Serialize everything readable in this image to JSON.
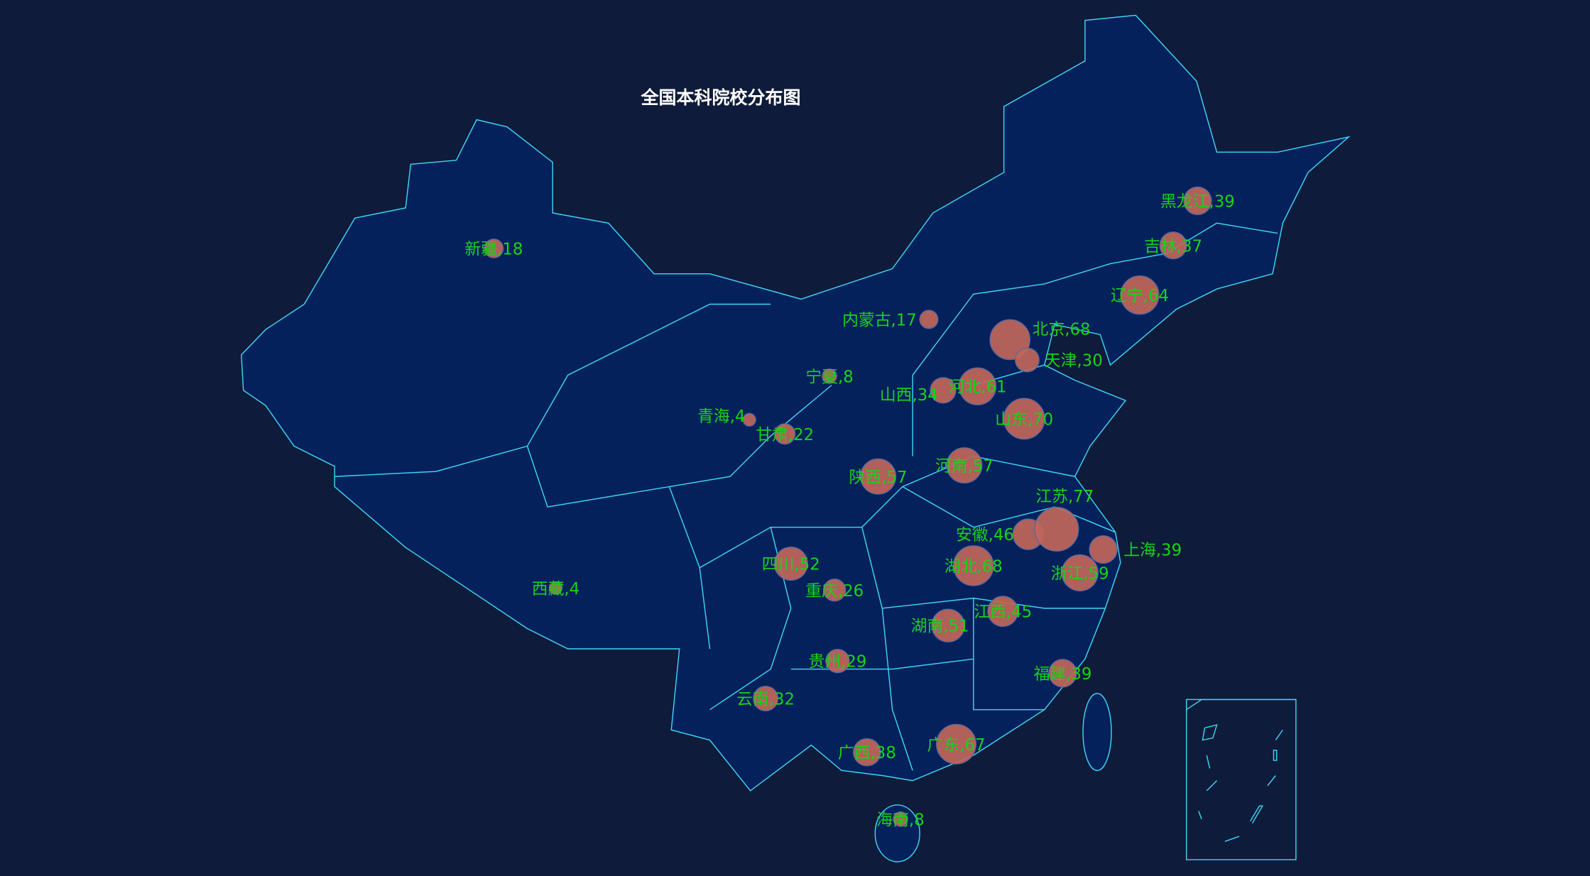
{
  "title": "全国本科院校分布图",
  "colors": {
    "background": "#0f1b3a",
    "map_fill": "#04215c",
    "border": "#3dd6f5",
    "bubble": "#c0665a",
    "label": "#19d219"
  },
  "chart_data": {
    "type": "scatter",
    "title": "全国本科院校分布图",
    "points": [
      {
        "name": "新疆",
        "value": 18
      },
      {
        "name": "西藏",
        "value": 4
      },
      {
        "name": "青海",
        "value": 4
      },
      {
        "name": "甘肃",
        "value": 22
      },
      {
        "name": "宁夏",
        "value": 8
      },
      {
        "name": "内蒙古",
        "value": 17
      },
      {
        "name": "陕西",
        "value": 57
      },
      {
        "name": "山西",
        "value": 34
      },
      {
        "name": "河北",
        "value": 61
      },
      {
        "name": "北京",
        "value": 68
      },
      {
        "name": "天津",
        "value": 30
      },
      {
        "name": "山东",
        "value": 70
      },
      {
        "name": "河南",
        "value": 57
      },
      {
        "name": "辽宁",
        "value": 64
      },
      {
        "name": "吉林",
        "value": 37
      },
      {
        "name": "黑龙江",
        "value": 39
      },
      {
        "name": "四川",
        "value": 52
      },
      {
        "name": "重庆",
        "value": 26
      },
      {
        "name": "贵州",
        "value": 29
      },
      {
        "name": "云南",
        "value": 32
      },
      {
        "name": "广西",
        "value": 38
      },
      {
        "name": "广东",
        "value": 67
      },
      {
        "name": "海南",
        "value": 8
      },
      {
        "name": "湖南",
        "value": 51
      },
      {
        "name": "湖北",
        "value": 68
      },
      {
        "name": "江西",
        "value": 45
      },
      {
        "name": "安徽",
        "value": 46
      },
      {
        "name": "江苏",
        "value": 77
      },
      {
        "name": "上海",
        "value": 39
      },
      {
        "name": "浙江",
        "value": 59
      },
      {
        "name": "福建",
        "value": 39
      }
    ]
  }
}
